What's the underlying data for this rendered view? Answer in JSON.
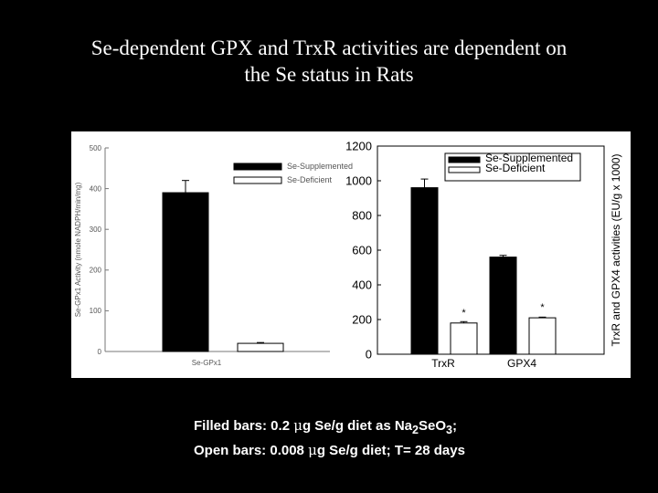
{
  "slide": {
    "title_line1": "Se-dependent GPX and TrxR activities are dependent on",
    "title_line2": "the Se status in Rats"
  },
  "caption": {
    "line1": {
      "prefix": "Filled bars: 0.2 ",
      "mu": "μ",
      "mid": "g Se/g diet as Na",
      "sub1": "2",
      "mid2": "SeO",
      "sub2": "3",
      "suffix": ";"
    },
    "line2": {
      "prefix": "Open bars: 0.008 ",
      "mu": "μ",
      "suffix": "g Se/g diet; T= 28 days"
    }
  },
  "colors": {
    "filled": "#000000",
    "open": "#ffffff",
    "background": "#000000",
    "panel": "#ffffff"
  },
  "chart_data": [
    {
      "type": "bar",
      "categories": [
        "Se-GPx1"
      ],
      "series": [
        {
          "name": "Se-Supplemented",
          "values": [
            390
          ],
          "errors": [
            30
          ]
        },
        {
          "name": "Se-Deficient",
          "values": [
            20
          ],
          "errors": [
            2
          ]
        }
      ],
      "ylabel": "Se-GPx1 Activity (nmole NADPH/min/mg)",
      "ylim": [
        0,
        500
      ],
      "yticks": [
        0,
        100,
        200,
        300,
        400,
        500
      ],
      "legend": "top-right",
      "grid": false
    },
    {
      "type": "bar",
      "categories": [
        "TrxR",
        "GPX4"
      ],
      "series": [
        {
          "name": "Se-Supplemented",
          "values": [
            960,
            560
          ],
          "errors": [
            50,
            10
          ]
        },
        {
          "name": "Se-Deficient",
          "values": [
            180,
            210
          ],
          "errors": [
            8,
            4
          ]
        }
      ],
      "annotations": [
        {
          "category": "TrxR",
          "series": "Se-Deficient",
          "text": "*"
        },
        {
          "category": "GPX4",
          "series": "Se-Deficient",
          "text": "*"
        }
      ],
      "ylabel": "TrxR and GPX4 activities (EU/g x 1000)",
      "ylim": [
        0,
        1200
      ],
      "yticks": [
        0,
        200,
        400,
        600,
        800,
        1000,
        1200
      ],
      "legend": "top-right",
      "grid": false
    }
  ]
}
